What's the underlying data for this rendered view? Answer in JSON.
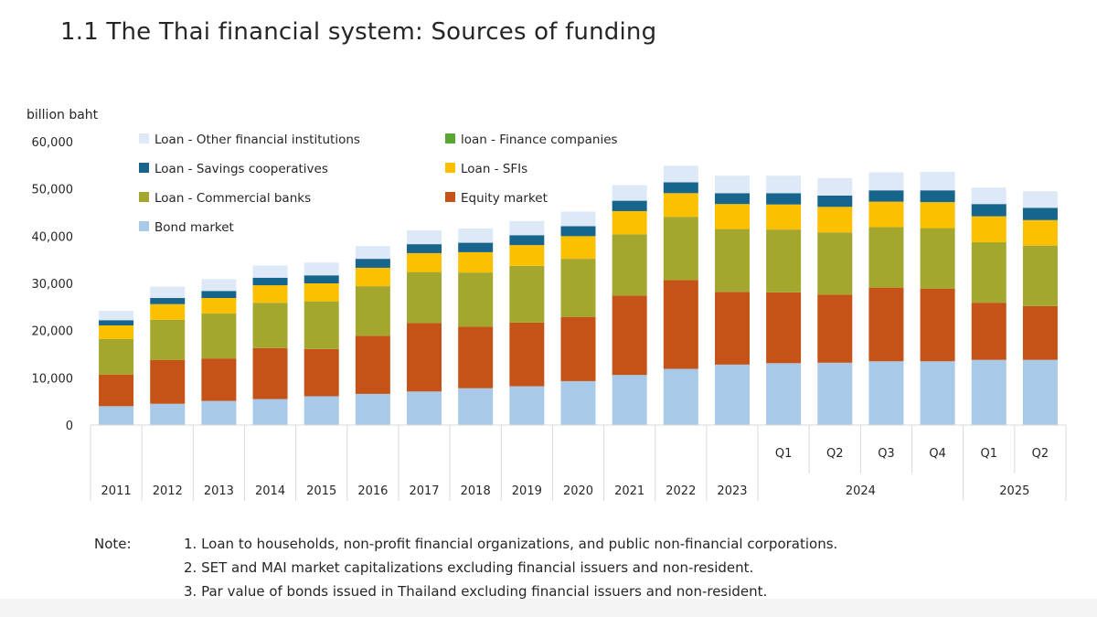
{
  "page": {
    "title": "1.1  The Thai financial system: Sources of funding"
  },
  "notes": {
    "label": "Note:",
    "items": [
      "1. Loan to households, non-profit financial organizations, and public non-financial corporations.",
      "2. SET and MAI market capitalizations excluding financial issuers and non-resident.",
      "3. Par value of bonds issued in Thailand excluding financial issuers and non-resident."
    ]
  },
  "chart_data": {
    "type": "bar",
    "stacked": true,
    "title": "",
    "ylabel": "billion baht",
    "ylim": [
      0,
      60000
    ],
    "yticks": [
      "0",
      "10,000",
      "20,000",
      "30,000",
      "40,000",
      "50,000",
      "60,000"
    ],
    "grid": false,
    "legend_position": "top-left",
    "categories": [
      "2011",
      "2012",
      "2013",
      "2014",
      "2015",
      "2016",
      "2017",
      "2018",
      "2019",
      "2020",
      "2021",
      "2022",
      "2023",
      "Q1",
      "Q2",
      "Q3",
      "Q4",
      "Q1",
      "Q2"
    ],
    "category_groups": [
      {
        "label": "2024",
        "members": [
          "Q1",
          "Q2",
          "Q3",
          "Q4"
        ]
      },
      {
        "label": "2025",
        "members": [
          "Q1",
          "Q2"
        ]
      }
    ],
    "series": [
      {
        "name": "Bond market",
        "color": "#a9c9e9",
        "values": [
          4000,
          4500,
          5100,
          5500,
          6100,
          6600,
          7100,
          7800,
          8200,
          9300,
          10600,
          11900,
          12800,
          13100,
          13200,
          13500,
          13500,
          13800,
          13800
        ]
      },
      {
        "name": "Equity market",
        "color": "#c55317",
        "values": [
          6700,
          9300,
          9000,
          10800,
          10000,
          12300,
          14500,
          13000,
          13500,
          13600,
          16800,
          18800,
          15400,
          15000,
          14400,
          15600,
          15400,
          12100,
          11400
        ]
      },
      {
        "name": "Loan - Commercial banks",
        "color": "#a4a72e",
        "values": [
          7500,
          8500,
          9500,
          9600,
          10100,
          10500,
          10800,
          11500,
          12000,
          12300,
          13000,
          13400,
          13300,
          13300,
          13200,
          12800,
          12800,
          12800,
          12800
        ]
      },
      {
        "name": "Loan - SFIs",
        "color": "#fcc000",
        "values": [
          2900,
          3300,
          3300,
          3700,
          3800,
          3900,
          4000,
          4300,
          4400,
          4800,
          4900,
          5000,
          5300,
          5300,
          5400,
          5400,
          5500,
          5500,
          5400
        ]
      },
      {
        "name": "Loan - Savings cooperatives",
        "color": "#17658d",
        "values": [
          1100,
          1300,
          1500,
          1600,
          1700,
          1900,
          1900,
          2000,
          2100,
          2100,
          2200,
          2300,
          2300,
          2400,
          2400,
          2400,
          2500,
          2600,
          2600
        ]
      },
      {
        "name": "loan - Finance companies",
        "color": "#58a732",
        "values": [
          0,
          0,
          0,
          0,
          0,
          0,
          0,
          0,
          0,
          0,
          0,
          0,
          0,
          0,
          0,
          0,
          0,
          0,
          0
        ]
      },
      {
        "name": "Loan - Other financial institutions",
        "color": "#dde9f7",
        "values": [
          2000,
          2400,
          2500,
          2600,
          2700,
          2700,
          2900,
          3000,
          3000,
          3100,
          3300,
          3500,
          3700,
          3700,
          3700,
          3800,
          3900,
          3500,
          3500
        ]
      }
    ],
    "legend_order": [
      "Loan - Other financial institutions",
      "loan - Finance companies",
      "Loan - Savings cooperatives",
      "Loan - SFIs",
      "Loan - Commercial banks",
      "Equity market",
      "Bond market"
    ]
  }
}
